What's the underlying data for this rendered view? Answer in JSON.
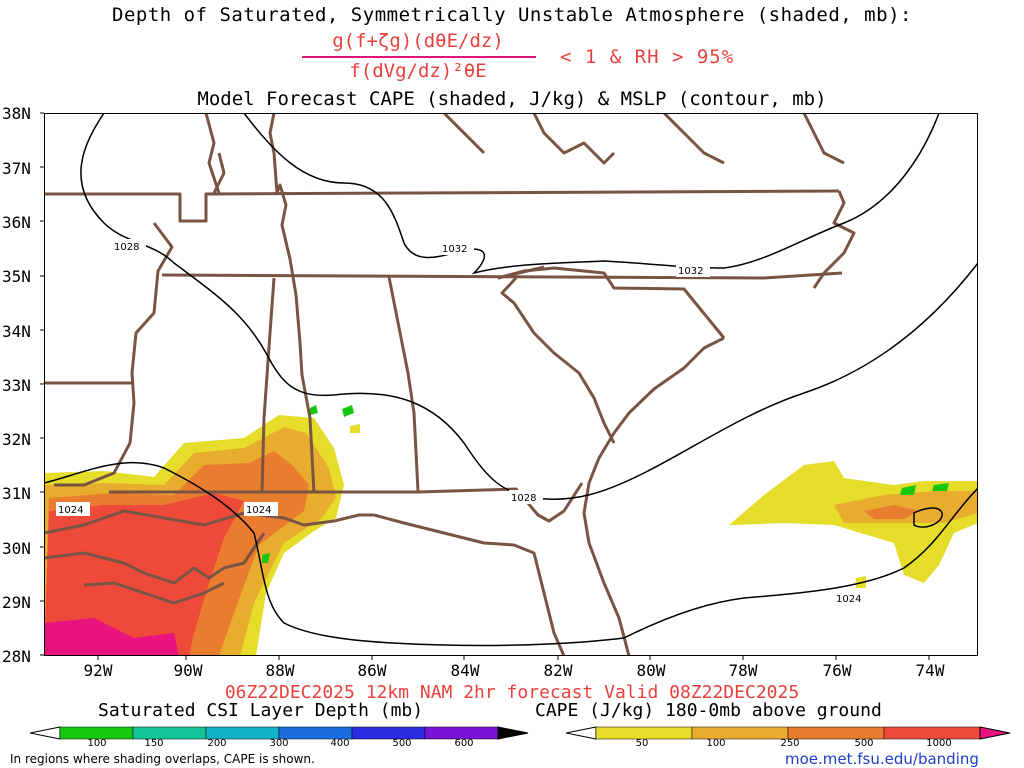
{
  "header": {
    "title": "Depth of Saturated, Symmetrically Unstable Atmosphere (shaded, mb):",
    "formula_numerator": "g(f+ζg)(dθE/dz)",
    "formula_denominator": "f(dVg/dz)²θE",
    "condition": "< 1 & RH > 95%",
    "subtitle": "Model Forecast CAPE (shaded, J/kg) & MSLP (contour, mb)"
  },
  "map": {
    "lat_labels": [
      "38N",
      "37N",
      "36N",
      "35N",
      "34N",
      "33N",
      "32N",
      "31N",
      "30N",
      "29N",
      "28N"
    ],
    "lon_labels": [
      "92W",
      "90W",
      "88W",
      "86W",
      "84W",
      "82W",
      "80W",
      "78W",
      "76W",
      "74W"
    ],
    "contour_labels": [
      "1028",
      "1032",
      "1032",
      "1028",
      "1024",
      "1024",
      "1024"
    ],
    "colors": {
      "border": "#7a5443",
      "contour": "#000000"
    }
  },
  "footer": {
    "valid_time": "06Z22DEC2025 12km NAM 2hr forecast Valid 08Z22DEC2025",
    "csi_label": "Saturated CSI Layer Depth (mb)",
    "cape_label": "CAPE (J/kg) 180-0mb above ground",
    "csi_ticks": [
      "100",
      "150",
      "200",
      "300",
      "400",
      "500",
      "600"
    ],
    "cape_ticks": [
      "50",
      "100",
      "250",
      "500",
      "1000"
    ],
    "csi_colors": [
      "#ffffff",
      "#16c80f",
      "#14c396",
      "#12b2c8",
      "#1a6ee0",
      "#2a2ae0",
      "#7b13d6",
      "#000000"
    ],
    "cape_colors": [
      "#ffffff",
      "#e6dd2a",
      "#e8ad2e",
      "#ea7c2f",
      "#ee4a3a",
      "#e8137f"
    ],
    "note": "In regions where shading overlaps, CAPE is shown.",
    "site": "moe.met.fsu.edu/banding"
  }
}
